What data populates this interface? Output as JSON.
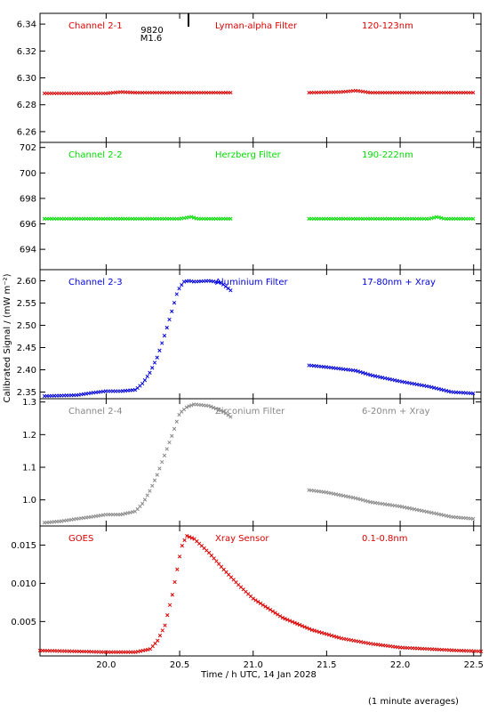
{
  "figure": {
    "ylabel": "Calibrated Signal / (mW m⁻²)",
    "xlabel": "Time / h UTC, 14 Jan 2028",
    "footnote": "(1 minute averages)",
    "xlim": [
      19.55,
      22.55
    ],
    "xticks": [
      20.0,
      20.5,
      21.0,
      21.5,
      22.0,
      22.5
    ],
    "xtick_labels": [
      "20.0",
      "20.5",
      "21.0",
      "21.5",
      "22.0",
      "22.5"
    ],
    "event_marker": {
      "time": 20.56,
      "labels": [
        "9820",
        "M1.6"
      ]
    }
  },
  "chart_data": [
    {
      "type": "scatter",
      "panel_labels": {
        "channel": "Channel 2-1",
        "filter": "Lyman-alpha Filter",
        "band": "120-123nm"
      },
      "color": "#dd0000",
      "ylim": [
        6.252,
        6.348
      ],
      "yticks": [
        6.26,
        6.28,
        6.3,
        6.32,
        6.34
      ],
      "ytick_labels": [
        "6.26",
        "6.28",
        "6.30",
        "6.32",
        "6.34"
      ],
      "segments": [
        {
          "x": [
            19.58,
            20.0,
            20.1,
            20.2,
            20.5,
            20.86
          ],
          "y": [
            6.2885,
            6.2885,
            6.2895,
            6.289,
            6.289,
            6.289
          ]
        },
        {
          "x": [
            21.38,
            21.6,
            21.7,
            21.8,
            22.0,
            22.5
          ],
          "y": [
            6.289,
            6.2895,
            6.2905,
            6.289,
            6.289,
            6.289
          ]
        }
      ]
    },
    {
      "type": "scatter",
      "panel_labels": {
        "channel": "Channel 2-2",
        "filter": "Herzberg Filter",
        "band": "190-222nm"
      },
      "color": "#00dd00",
      "ylim": [
        692.4,
        702.4
      ],
      "yticks": [
        694,
        696,
        698,
        700,
        702
      ],
      "ytick_labels": [
        "694",
        "696",
        "698",
        "700",
        "702"
      ],
      "segments": [
        {
          "x": [
            19.58,
            20.5,
            20.58,
            20.62,
            20.86
          ],
          "y": [
            696.4,
            696.4,
            696.55,
            696.4,
            696.4
          ]
        },
        {
          "x": [
            21.38,
            22.2,
            22.25,
            22.3,
            22.5
          ],
          "y": [
            696.4,
            696.4,
            696.55,
            696.4,
            696.4
          ]
        }
      ]
    },
    {
      "type": "scatter",
      "panel_labels": {
        "channel": "Channel 2-3",
        "filter": "Aluminium Filter",
        "band": "17-80nm + Xray"
      },
      "color": "#0000dd",
      "ylim": [
        2.335,
        2.625
      ],
      "yticks": [
        2.35,
        2.4,
        2.45,
        2.5,
        2.55,
        2.6
      ],
      "ytick_labels": [
        "2.35",
        "2.40",
        "2.45",
        "2.50",
        "2.55",
        "2.60"
      ],
      "segments": [
        {
          "x": [
            19.58,
            19.8,
            19.9,
            20.0,
            20.1,
            20.2,
            20.25,
            20.3,
            20.35,
            20.4,
            20.45,
            20.48,
            20.5,
            20.53,
            20.56,
            20.6,
            20.7,
            20.78,
            20.86
          ],
          "y": [
            2.341,
            2.343,
            2.348,
            2.352,
            2.352,
            2.355,
            2.37,
            2.395,
            2.43,
            2.48,
            2.535,
            2.57,
            2.585,
            2.598,
            2.6,
            2.598,
            2.6,
            2.596,
            2.575
          ]
        },
        {
          "x": [
            21.38,
            21.5,
            21.7,
            21.8,
            22.0,
            22.2,
            22.35,
            22.5
          ],
          "y": [
            2.41,
            2.406,
            2.398,
            2.388,
            2.374,
            2.362,
            2.35,
            2.347
          ]
        }
      ]
    },
    {
      "type": "scatter",
      "panel_labels": {
        "channel": "Channel 2-4",
        "filter": "Zirconium Filter",
        "band": "6-20nm + Xray"
      },
      "color": "#888888",
      "ylim": [
        0.92,
        1.31
      ],
      "yticks": [
        1.0,
        1.1,
        1.2,
        1.3
      ],
      "ytick_labels": [
        "1.0",
        "1.1",
        "1.2",
        "1.3"
      ],
      "segments": [
        {
          "x": [
            19.58,
            19.7,
            19.8,
            19.9,
            20.0,
            20.1,
            20.2,
            20.25,
            20.3,
            20.35,
            20.4,
            20.45,
            20.48,
            20.5,
            20.55,
            20.6,
            20.7,
            20.8,
            20.86
          ],
          "y": [
            0.93,
            0.935,
            0.942,
            0.948,
            0.955,
            0.955,
            0.965,
            0.99,
            1.03,
            1.08,
            1.14,
            1.2,
            1.24,
            1.265,
            1.285,
            1.293,
            1.288,
            1.27,
            1.25
          ]
        },
        {
          "x": [
            21.38,
            21.5,
            21.7,
            21.8,
            22.0,
            22.2,
            22.35,
            22.5
          ],
          "y": [
            1.03,
            1.023,
            1.005,
            0.993,
            0.98,
            0.962,
            0.948,
            0.942
          ]
        }
      ]
    },
    {
      "type": "scatter",
      "panel_labels": {
        "channel": "GOES",
        "filter": "Xray Sensor",
        "band": "0.1-0.8nm"
      },
      "color": "#dd0000",
      "ylim": [
        0.0005,
        0.0175
      ],
      "yticks": [
        0.005,
        0.01,
        0.015
      ],
      "ytick_labels": [
        "0.005",
        "0.010",
        "0.015"
      ],
      "segments": [
        {
          "x": [
            19.55,
            19.8,
            20.0,
            20.2,
            20.3,
            20.35,
            20.4,
            20.45,
            20.48,
            20.5,
            20.52,
            20.55,
            20.6,
            20.7,
            20.8,
            20.9,
            21.0,
            21.2,
            21.4,
            21.6,
            21.8,
            22.0,
            22.2,
            22.4,
            22.55
          ],
          "y": [
            0.0012,
            0.0011,
            0.001,
            0.001,
            0.0014,
            0.0025,
            0.0045,
            0.0085,
            0.0115,
            0.0135,
            0.0152,
            0.0162,
            0.0158,
            0.014,
            0.0118,
            0.0098,
            0.008,
            0.0055,
            0.0039,
            0.0028,
            0.0021,
            0.0016,
            0.0014,
            0.0012,
            0.0011
          ]
        }
      ]
    }
  ]
}
